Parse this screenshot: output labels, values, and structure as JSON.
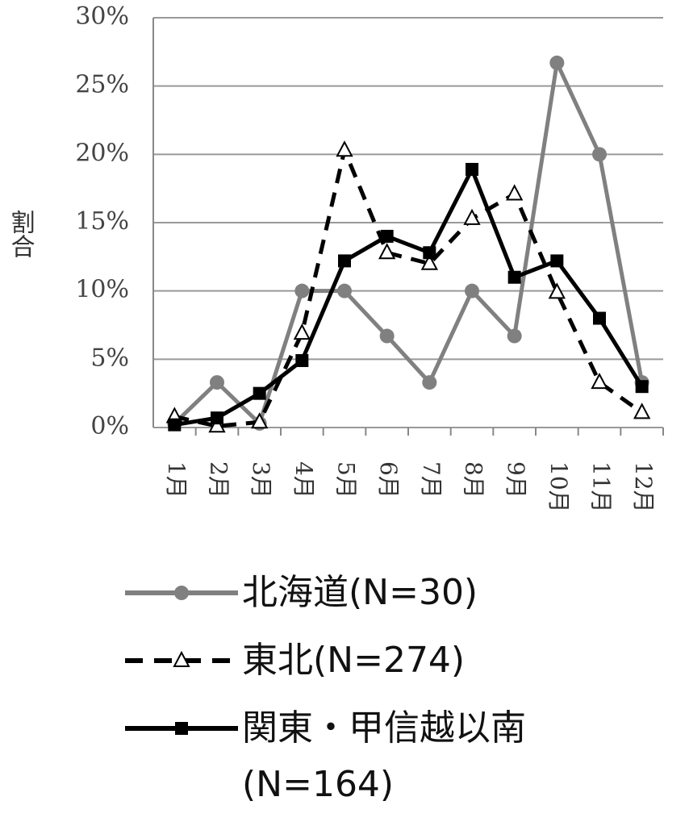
{
  "chart_data": {
    "type": "line",
    "y_label": "割合",
    "categories": [
      "1月",
      "2月",
      "3月",
      "4月",
      "5月",
      "6月",
      "7月",
      "8月",
      "9月",
      "10月",
      "11月",
      "12月"
    ],
    "series": [
      {
        "name": "北海道(N=30)",
        "color": "#808080",
        "marker": "circle",
        "dash": false,
        "values": [
          0.3,
          3.3,
          0.3,
          10,
          10,
          6.7,
          3.3,
          10,
          6.7,
          26.7,
          20,
          3.3
        ]
      },
      {
        "name": "東北(N=274)",
        "color": "#000000",
        "marker": "triangle",
        "dash": true,
        "values": [
          0.8,
          0.1,
          0.4,
          6.9,
          20.3,
          12.8,
          12.0,
          15.3,
          17.1,
          9.9,
          3.3,
          1.1
        ]
      },
      {
        "name": "関東・甲信越以南(N=164)",
        "color": "#000000",
        "marker": "square",
        "dash": false,
        "values": [
          0.2,
          0.7,
          2.5,
          4.9,
          12.2,
          14.0,
          12.8,
          18.9,
          11.0,
          12.2,
          8.0,
          3.0
        ]
      }
    ],
    "ylim": [
      0,
      30
    ],
    "yticks": [
      {
        "value": 0,
        "label": "0%"
      },
      {
        "value": 5,
        "label": "5%"
      },
      {
        "value": 10,
        "label": "10%"
      },
      {
        "value": 15,
        "label": "15%"
      },
      {
        "value": 20,
        "label": "20%"
      },
      {
        "value": 25,
        "label": "25%"
      },
      {
        "value": 30,
        "label": "30%"
      }
    ],
    "grid": true
  }
}
